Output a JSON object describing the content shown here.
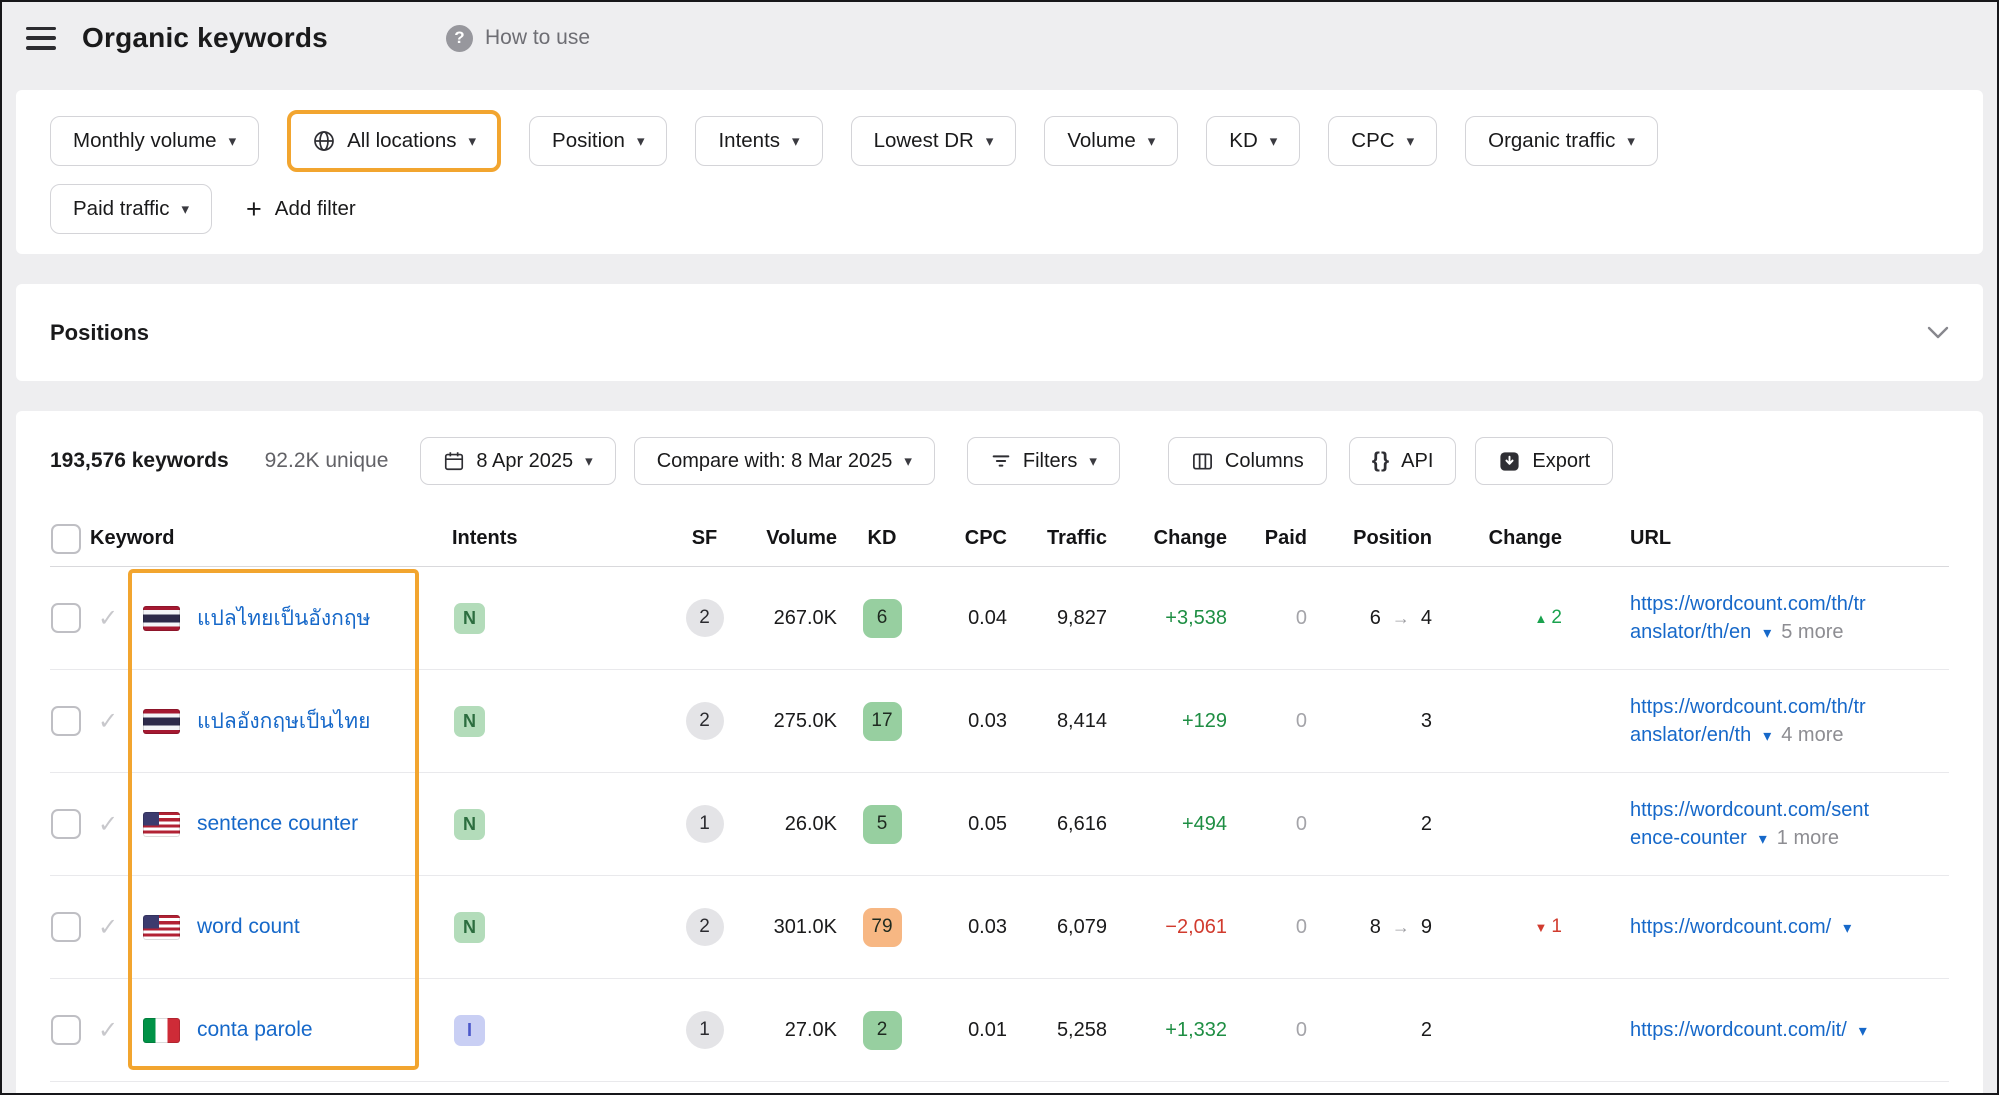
{
  "colors": {
    "highlight-orange": "#f2a52f",
    "link-blue": "#1668c9",
    "positive-green": "#1e8e43",
    "negative-red": "#d13b2e",
    "kd-green-bg": "#97cfa0",
    "kd-orange-bg": "#f7b783",
    "intent-nav-bg": "#b3dcba",
    "intent-nav-text": "#2c6e3f",
    "intent-info-bg": "#c9cff4",
    "intent-info-text": "#4a57c9"
  },
  "header": {
    "title": "Organic keywords",
    "help_label": "How to use"
  },
  "filter_bar": {
    "row1": [
      {
        "label": "Monthly volume"
      },
      {
        "label": "All locations",
        "icon": "globe",
        "highlighted": true
      },
      {
        "label": "Position"
      },
      {
        "label": "Intents"
      },
      {
        "label": "Lowest DR"
      },
      {
        "label": "Volume"
      },
      {
        "label": "KD"
      },
      {
        "label": "CPC"
      },
      {
        "label": "Organic traffic"
      }
    ],
    "row2": [
      {
        "label": "Paid traffic"
      }
    ],
    "add_filter_label": "Add filter"
  },
  "positions": {
    "title": "Positions"
  },
  "toolbar": {
    "keywords_total": "193,576 keywords",
    "unique_total": "92.2K unique",
    "date_label": "8 Apr 2025",
    "compare_label": "Compare with: 8 Mar 2025",
    "filters_label": "Filters",
    "columns_label": "Columns",
    "api_label": "API",
    "export_label": "Export"
  },
  "table": {
    "columns": [
      "Keyword",
      "Intents",
      "SF",
      "Volume",
      "KD",
      "CPC",
      "Traffic",
      "Change",
      "Paid",
      "Position",
      "Change",
      "URL"
    ],
    "rows": [
      {
        "country": "th",
        "keyword": "แปลไทยเป็นอังกฤษ",
        "intent": "N",
        "intent_type": "navigational",
        "sf": "2",
        "volume": "267.0K",
        "kd": "6",
        "kd_level": "green",
        "cpc": "0.04",
        "traffic": "9,827",
        "traffic_change": "+3,538",
        "traffic_change_dir": "up",
        "paid": "0",
        "position_from": "6",
        "position": "4",
        "position_change": "2",
        "position_change_dir": "up",
        "url": "https://wordcount.com/th/translator/th/en",
        "more_label": "5 more"
      },
      {
        "country": "th",
        "keyword": "แปลอังกฤษเป็นไทย",
        "intent": "N",
        "intent_type": "navigational",
        "sf": "2",
        "volume": "275.0K",
        "kd": "17",
        "kd_level": "green",
        "cpc": "0.03",
        "traffic": "8,414",
        "traffic_change": "+129",
        "traffic_change_dir": "up",
        "paid": "0",
        "position": "3",
        "url": "https://wordcount.com/th/translator/en/th",
        "more_label": "4 more"
      },
      {
        "country": "us",
        "keyword": "sentence counter",
        "intent": "N",
        "intent_type": "navigational",
        "sf": "1",
        "volume": "26.0K",
        "kd": "5",
        "kd_level": "green",
        "cpc": "0.05",
        "traffic": "6,616",
        "traffic_change": "+494",
        "traffic_change_dir": "up",
        "paid": "0",
        "position": "2",
        "url": "https://wordcount.com/sentence-counter",
        "more_label": "1 more"
      },
      {
        "country": "us",
        "keyword": "word count",
        "intent": "N",
        "intent_type": "navigational",
        "sf": "2",
        "volume": "301.0K",
        "kd": "79",
        "kd_level": "orange",
        "cpc": "0.03",
        "traffic": "6,079",
        "traffic_change": "−2,061",
        "traffic_change_dir": "down",
        "paid": "0",
        "position_from": "8",
        "position": "9",
        "position_change": "1",
        "position_change_dir": "down",
        "url": "https://wordcount.com/",
        "more_label": ""
      },
      {
        "country": "it",
        "keyword": "conta parole",
        "intent": "I",
        "intent_type": "informational",
        "sf": "1",
        "volume": "27.0K",
        "kd": "2",
        "kd_level": "green",
        "cpc": "0.01",
        "traffic": "5,258",
        "traffic_change": "+1,332",
        "traffic_change_dir": "up",
        "paid": "0",
        "position": "2",
        "url": "https://wordcount.com/it/",
        "more_label": ""
      }
    ]
  }
}
